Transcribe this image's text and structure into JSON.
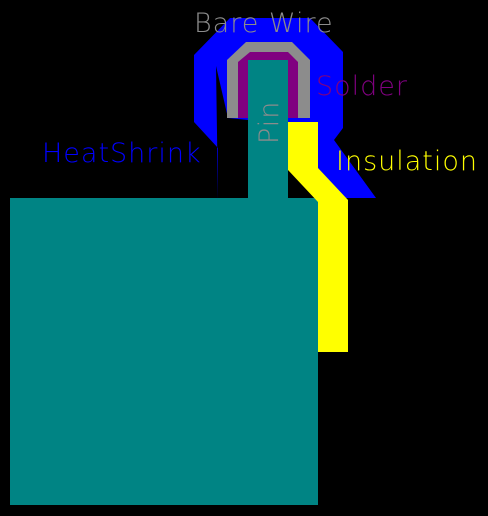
{
  "colors": {
    "background": "#000000",
    "body": "#008484",
    "pin": "#008484",
    "heatshrink": "#0000ff",
    "bare_wire": "#8c8c8c",
    "solder": "#800080",
    "insulation": "#ffff00"
  },
  "labels": {
    "bare_wire": "Bare Wire",
    "solder": "Solder",
    "pin": "Pin",
    "heatshrink": "HeatShrink",
    "insulation": "Insulation"
  }
}
